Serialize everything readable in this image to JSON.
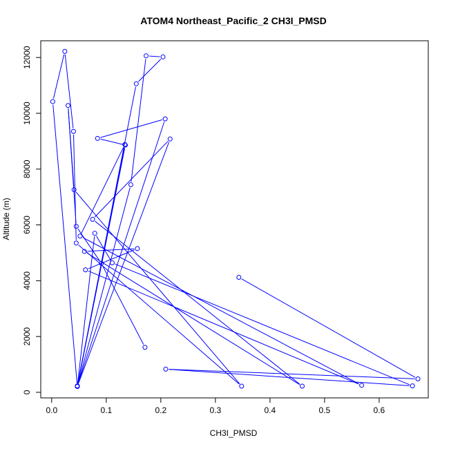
{
  "chart_data": {
    "type": "line",
    "title": "ATOM4 Northeast_Pacific_2 CH3I_PMSD",
    "xlabel": "CH3I_PMSD",
    "ylabel": "Altitude (m)",
    "xlim": [
      -0.02,
      0.69
    ],
    "ylim": [
      -200,
      12600
    ],
    "x_ticks": [
      0.0,
      0.1,
      0.2,
      0.3,
      0.4,
      0.5,
      0.6
    ],
    "x_tick_labels": [
      "0.0",
      "0.1",
      "0.2",
      "0.3",
      "0.4",
      "0.5",
      "0.6"
    ],
    "y_ticks": [
      0,
      2000,
      4000,
      6000,
      8000,
      10000,
      12000
    ],
    "y_tick_labels": [
      "0",
      "2000",
      "4000",
      "6000",
      "8000",
      "10000",
      "12000"
    ],
    "grid": false,
    "legend": "none",
    "series_color": "#0000ff",
    "marker": "open-circle",
    "series": [
      {
        "x": [
          0.343,
          0.671,
          0.209,
          0.661,
          0.111,
          0.079,
          0.047,
          0.134,
          0.052,
          0.568,
          0.062,
          0.157,
          0.06,
          0.459,
          0.075,
          0.217,
          0.047,
          0.145,
          0.173,
          0.204,
          0.155,
          0.047,
          0.208,
          0.084,
          0.135,
          0.047,
          0.002,
          0.024,
          0.04,
          0.045,
          0.348,
          0.041,
          0.03,
          0.045,
          0.091,
          0.171
        ],
        "y": [
          4120,
          480,
          830,
          230,
          4640,
          5700,
          210,
          8880,
          5600,
          250,
          4390,
          5150,
          5050,
          220,
          6200,
          9080,
          210,
          7440,
          12060,
          12020,
          11060,
          230,
          9800,
          9100,
          8860,
          210,
          10420,
          12220,
          9350,
          5350,
          220,
          7260,
          10280,
          5950,
          4620,
          1610
        ]
      }
    ]
  }
}
